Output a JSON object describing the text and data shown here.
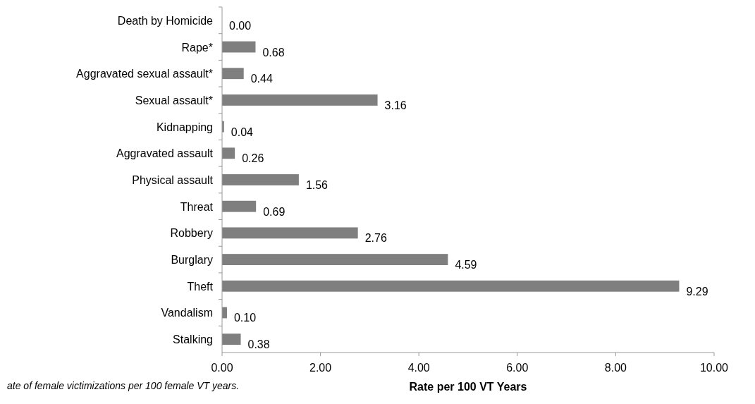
{
  "chart_data": {
    "type": "bar",
    "orientation": "horizontal",
    "xlabel": "Rate per 100 VT Years",
    "categories": [
      "Death by Homicide",
      "Rape*",
      "Aggravated sexual assault*",
      "Sexual assault*",
      "Kidnapping",
      "Aggravated assault",
      "Physical assault",
      "Threat",
      "Robbery",
      "Burglary",
      "Theft",
      "Vandalism",
      "Stalking"
    ],
    "values": [
      0,
      0.68,
      0.44,
      3.16,
      0.04,
      0.26,
      1.56,
      0.69,
      2.76,
      4.59,
      9.29,
      0.1,
      0.38
    ],
    "value_labels": [
      "0.00",
      "0.68",
      "0.44",
      "3.16",
      "0.04",
      "0.26",
      "1.56",
      "0.69",
      "2.76",
      "4.59",
      "9.29",
      "0.10",
      "0.38"
    ],
    "color": "#7f7f7f",
    "xlim": [
      0,
      10
    ],
    "xticks": [
      {
        "value": 0,
        "label": "0.00"
      },
      {
        "value": 2,
        "label": "2.00"
      },
      {
        "value": 4,
        "label": "4.00"
      },
      {
        "value": 6,
        "label": "6.00"
      },
      {
        "value": 8,
        "label": "8.00"
      },
      {
        "value": 10,
        "label": "10.00"
      }
    ],
    "grid": false,
    "annotations": [
      "ate of female victimizations per 100 female VT years."
    ]
  }
}
